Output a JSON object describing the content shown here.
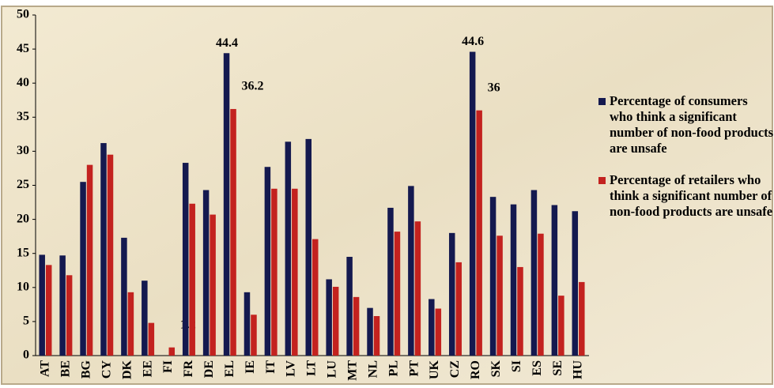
{
  "chart_data": {
    "type": "bar",
    "categories": [
      "AT",
      "BE",
      "BG",
      "CY",
      "DK",
      "EE",
      "FI",
      "FR",
      "DE",
      "EL",
      "IE",
      "IT",
      "LV",
      "LT",
      "LU",
      "MT",
      "NL",
      "PL",
      "PT",
      "UK",
      "CZ",
      "RO",
      "SK",
      "SI",
      "ES",
      "SE",
      "HU"
    ],
    "series": [
      {
        "name": "Percentage of consumers who think a significant number of non-food products are unsafe",
        "color": "#14194f",
        "values": [
          14.8,
          14.7,
          25.5,
          31.2,
          17.3,
          11,
          null,
          28.3,
          24.3,
          44.4,
          9.3,
          27.7,
          31.4,
          31.8,
          11.2,
          14.5,
          7,
          21.7,
          24.9,
          8.3,
          18,
          44.6,
          23.3,
          22.2,
          24.3,
          22.1,
          21.2
        ],
        "value_labels": [
          null,
          null,
          null,
          null,
          null,
          null,
          null,
          null,
          null,
          "44.4",
          null,
          null,
          null,
          null,
          null,
          null,
          null,
          null,
          null,
          null,
          null,
          "44.6",
          null,
          null,
          null,
          null,
          null
        ]
      },
      {
        "name": "Percentage of retailers who think a significant number of non-food products are unsafe",
        "color": "#c3221f",
        "values": [
          13.3,
          11.8,
          28,
          29.5,
          9.3,
          4.8,
          1.2,
          22.3,
          20.7,
          36.2,
          6,
          24.5,
          24.5,
          17.1,
          10.1,
          8.6,
          5.8,
          18.2,
          19.7,
          6.9,
          13.7,
          36,
          17.6,
          13,
          17.9,
          8.8,
          10.8
        ],
        "value_labels": [
          null,
          null,
          null,
          null,
          null,
          null,
          "1.2",
          null,
          null,
          "36.2",
          null,
          null,
          null,
          null,
          null,
          null,
          null,
          null,
          null,
          null,
          null,
          "36",
          null,
          null,
          null,
          null,
          null
        ]
      }
    ],
    "ylim": [
      0,
      50
    ],
    "yticks": [
      0,
      5,
      10,
      15,
      20,
      25,
      30,
      35,
      40,
      45,
      50
    ],
    "grid": false,
    "legend": "right"
  }
}
